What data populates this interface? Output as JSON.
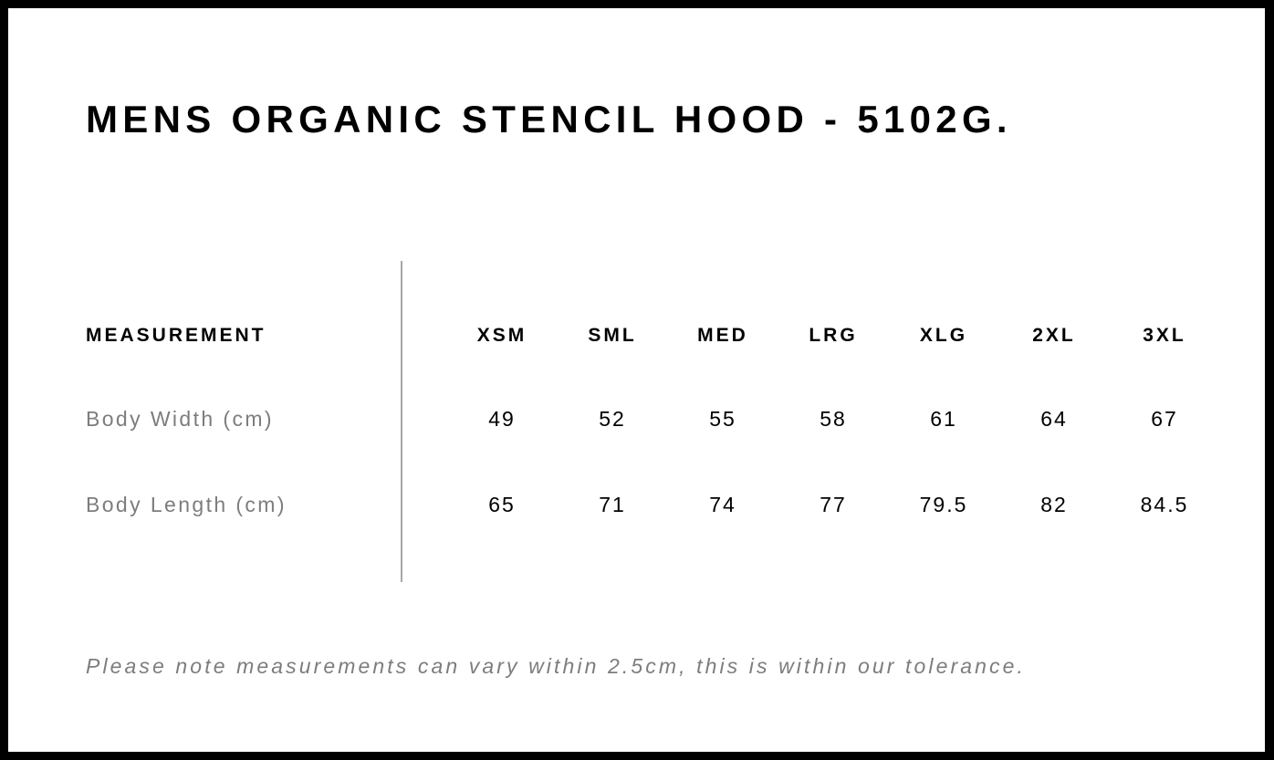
{
  "title": "MENS ORGANIC STENCIL HOOD - 5102G.",
  "table": {
    "header_label": "MEASUREMENT",
    "sizes": [
      "XSM",
      "SML",
      "MED",
      "LRG",
      "XLG",
      "2XL",
      "3XL"
    ],
    "rows": [
      {
        "label": "Body Width (cm)",
        "values": [
          "49",
          "52",
          "55",
          "58",
          "61",
          "64",
          "67"
        ]
      },
      {
        "label": "Body Length (cm)",
        "values": [
          "65",
          "71",
          "74",
          "77",
          "79.5",
          "82",
          "84.5"
        ]
      }
    ]
  },
  "note": "Please note measurements can vary within 2.5cm, this is within our tolerance."
}
